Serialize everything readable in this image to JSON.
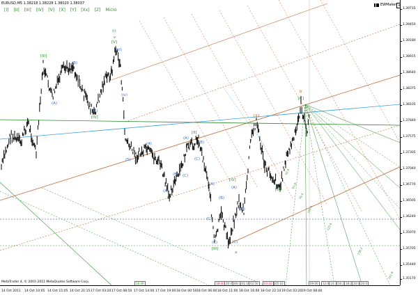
{
  "window": {
    "title": "EURUSD,M5  1.38218 1.38228 1.38020 1.38037",
    "logo_text": "EWMaker",
    "close_label": "x"
  },
  "toolbar": {
    "buttons": [
      "[I]",
      "[II]",
      "[III]",
      "[IV]",
      "[V]",
      "[X]",
      "[Y]",
      "[Xx]",
      "[Z]",
      "Micro"
    ]
  },
  "colors": {
    "price_bars": "#000000",
    "wave_blue": "#3b70b8",
    "wave_green": "#2e8b2e",
    "wave_brown": "#b5642c",
    "wave_red": "#cc2020",
    "channel_brown": "#c06a3a",
    "channel_green": "#2e8b2e",
    "trendline_blue": "#3b9fe0",
    "fib_green": "#2e8b2e"
  },
  "price_axis": {
    "labels": [
      "1.39715",
      "1.39450",
      "1.39180",
      "1.38915",
      "1.38640",
      "1.38375",
      "1.38105",
      "1.37840",
      "1.37575",
      "1.37305",
      "1.37040",
      "1.36770",
      "1.36505",
      "1.36240",
      "1.35970",
      "1.35705",
      "1.35440",
      "1.35170"
    ]
  },
  "time_axis": {
    "labels": [
      "14 Oct 2011",
      "14 Oct 10:05",
      "14 Oct 15:05",
      "14 Oct 21:15",
      "17 Oct 03:20",
      "17 Oct 08:50",
      "17 Oct 14:00",
      "17 Oct 19:00",
      "18 Oct 00:50",
      "18 Oct 06:00",
      "18 Oct 11:00",
      "18 Oct 16:00",
      "18 Oct 22:10",
      "19 Oct 03:20",
      "19 Oct 08:00"
    ]
  },
  "copyright": "MetaTrader 4, © 2001-2011 MetaQuotes Software Corp.",
  "time_badges": [
    "16:49",
    "18:00",
    "20:45",
    "00:10",
    "01:10",
    "02:50",
    "03:10",
    "05:10",
    "09:00",
    "12:0",
    "14:3",
    "16:2",
    "18:2",
    "20:0",
    "20:0"
  ],
  "wave_labels": [
    {
      "text": "[III]",
      "color": "green"
    },
    {
      "text": "(B)",
      "color": "blue"
    },
    {
      "text": "(A)",
      "color": "blue"
    },
    {
      "text": "(C)",
      "color": "blue"
    },
    {
      "text": "(i)",
      "color": "blue"
    },
    {
      "text": "v",
      "color": "blue"
    },
    {
      "text": "[V]",
      "color": "green"
    },
    {
      "text": "(iii)",
      "color": "blue"
    },
    {
      "text": "[IV]",
      "color": "green"
    },
    {
      "text": "(iv)",
      "color": "blue"
    },
    {
      "text": "(5)",
      "color": "blue"
    },
    {
      "text": "(4)",
      "color": "blue"
    },
    {
      "text": "(A)",
      "color": "blue"
    },
    {
      "text": "(B)",
      "color": "blue"
    },
    {
      "text": "(C)",
      "color": "blue"
    },
    {
      "text": "I",
      "color": "green"
    },
    {
      "text": "(A)",
      "color": "blue"
    },
    {
      "text": "[II]",
      "color": "green"
    },
    {
      "text": "(B)",
      "color": "blue"
    },
    {
      "text": "(C)",
      "color": "blue"
    },
    {
      "text": "(A)",
      "color": "blue"
    },
    {
      "text": "(B)",
      "color": "blue"
    },
    {
      "text": "[IV]",
      "color": "green"
    },
    {
      "text": "(A)",
      "color": "blue"
    },
    {
      "text": "(B)",
      "color": "blue"
    },
    {
      "text": "(C)",
      "color": "blue"
    },
    {
      "text": "(C)",
      "color": "blue"
    },
    {
      "text": "[III]",
      "color": "green"
    },
    {
      "text": "(C)",
      "color": "blue"
    },
    {
      "text": "a",
      "color": "brown"
    },
    {
      "text": "[X]",
      "color": "brown"
    },
    {
      "text": "b",
      "color": "brown"
    },
    {
      "text": "[C]",
      "color": "green"
    },
    {
      "text": "[B]",
      "color": "green"
    }
  ],
  "fib_labels": [
    "50.0",
    "61.8",
    "76.4",
    "100.0",
    "123.6",
    "138.2",
    "161.8"
  ]
}
